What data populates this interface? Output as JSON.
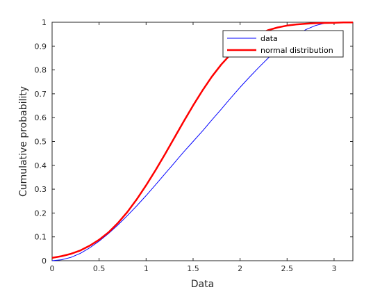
{
  "chart_data": {
    "type": "line",
    "title": "",
    "xlabel": "Data",
    "ylabel": "Cumulative probability",
    "xlim": [
      0,
      3.2
    ],
    "ylim": [
      0,
      1
    ],
    "xticks": [
      0,
      0.5,
      1,
      1.5,
      2,
      2.5,
      3
    ],
    "xtick_labels": [
      "0",
      "0.5",
      "1",
      "1.5",
      "2",
      "2.5",
      "3"
    ],
    "yticks": [
      0,
      0.1,
      0.2,
      0.3,
      0.4,
      0.5,
      0.6,
      0.7,
      0.8,
      0.9,
      1
    ],
    "ytick_labels": [
      "0",
      "0.1",
      "0.2",
      "0.3",
      "0.4",
      "0.5",
      "0.6",
      "0.7",
      "0.8",
      "0.9",
      "1"
    ],
    "grid": false,
    "legend_position": "top-right",
    "series": [
      {
        "name": "data",
        "color": "#0000ff",
        "x": [
          0,
          0.1,
          0.2,
          0.3,
          0.4,
          0.5,
          0.6,
          0.7,
          0.8,
          0.9,
          1.0,
          1.1,
          1.2,
          1.3,
          1.4,
          1.5,
          1.6,
          1.7,
          1.8,
          1.9,
          2.0,
          2.1,
          2.2,
          2.3,
          2.4,
          2.5,
          2.6,
          2.7,
          2.8,
          2.9,
          3.0,
          3.1,
          3.2
        ],
        "y": [
          0.0,
          0.004,
          0.014,
          0.031,
          0.054,
          0.082,
          0.114,
          0.15,
          0.189,
          0.23,
          0.273,
          0.318,
          0.364,
          0.41,
          0.456,
          0.5,
          0.544,
          0.59,
          0.636,
          0.682,
          0.727,
          0.77,
          0.811,
          0.85,
          0.886,
          0.918,
          0.946,
          0.969,
          0.986,
          0.996,
          1.0,
          1.0,
          1.0
        ]
      },
      {
        "name": "normal distribution",
        "color": "#ff0000",
        "x": [
          0,
          0.1,
          0.2,
          0.3,
          0.4,
          0.5,
          0.6,
          0.7,
          0.8,
          0.9,
          1.0,
          1.1,
          1.2,
          1.3,
          1.4,
          1.5,
          1.6,
          1.7,
          1.8,
          1.9,
          2.0,
          2.1,
          2.2,
          2.3,
          2.4,
          2.5,
          2.6,
          2.7,
          2.8,
          2.9,
          3.0,
          3.1,
          3.2
        ],
        "y": [
          0.012,
          0.019,
          0.029,
          0.043,
          0.063,
          0.088,
          0.119,
          0.158,
          0.204,
          0.257,
          0.316,
          0.379,
          0.446,
          0.515,
          0.584,
          0.651,
          0.714,
          0.772,
          0.823,
          0.866,
          0.902,
          0.93,
          0.951,
          0.967,
          0.978,
          0.986,
          0.991,
          0.994,
          0.996,
          0.997,
          0.998,
          0.999,
          0.999
        ]
      }
    ]
  }
}
